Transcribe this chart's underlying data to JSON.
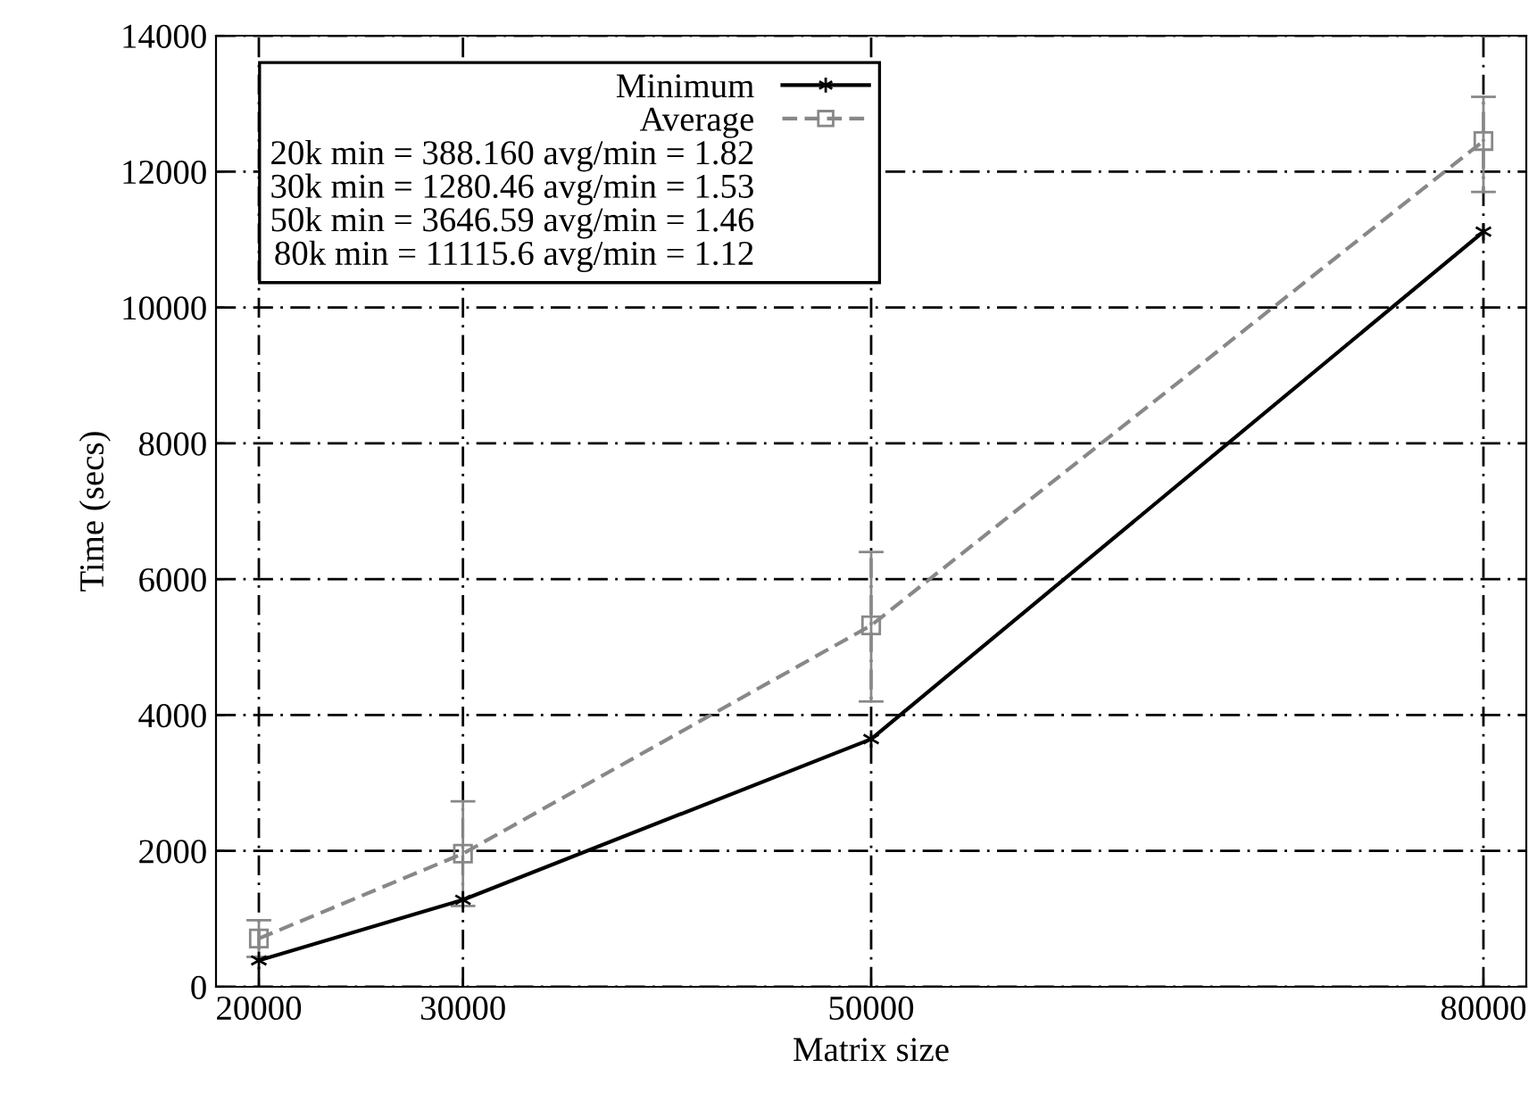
{
  "chart_data": {
    "type": "line",
    "xlabel": "Matrix size",
    "ylabel": "Time (secs)",
    "x": [
      20000,
      30000,
      50000,
      80000
    ],
    "series": [
      {
        "name": "Minimum",
        "color": "#000000",
        "marker": "cross",
        "line_style": "solid",
        "values": [
          388.16,
          1280.46,
          3646.59,
          11115.6
        ]
      },
      {
        "name": "Average",
        "color": "#888888",
        "marker": "square",
        "line_style": "dashed",
        "values": [
          710,
          1960,
          5320,
          12450
        ],
        "errors": [
          270,
          770,
          [
            4200,
            6400
          ],
          [
            11700,
            13100
          ]
        ]
      }
    ],
    "annotations": [
      "20k min = 388.160 avg/min = 1.82",
      "30k min = 1280.46 avg/min = 1.53",
      "50k min = 3646.59 avg/min = 1.46",
      "80k min = 11115.6 avg/min = 1.12"
    ],
    "xlim": [
      17900,
      82100
    ],
    "xticks": [
      20000,
      30000,
      50000,
      80000
    ],
    "ylim": [
      0,
      14000
    ],
    "yticks": [
      0,
      2000,
      4000,
      6000,
      8000,
      10000,
      12000,
      14000
    ],
    "grid": true,
    "legend": "top left"
  }
}
